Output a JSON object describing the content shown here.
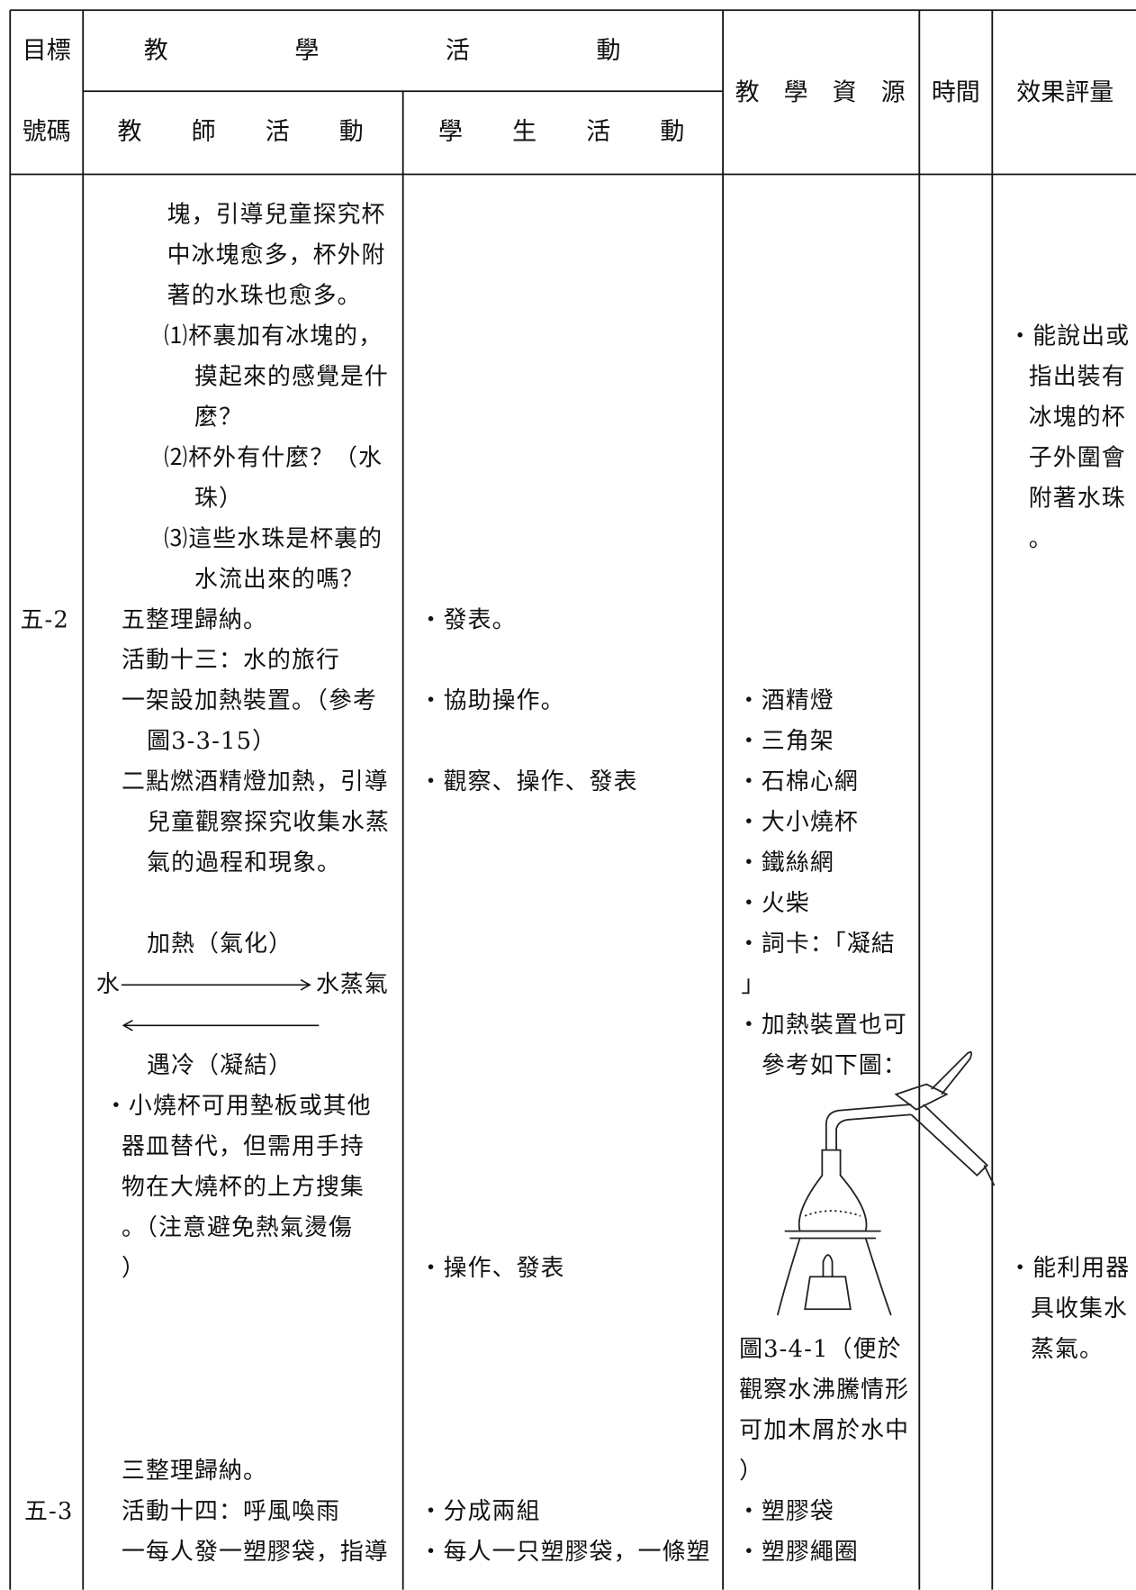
{
  "header": {
    "goal_top": "目標",
    "goal_bottom": "號碼",
    "activities": "教學活動",
    "teacher_activities": "教師活動",
    "student_activities": "學生活動",
    "resources": "教學資源",
    "time": "時間",
    "evaluation": "效果評量"
  },
  "goal_codes": [
    "五-2",
    "五-3"
  ],
  "teacher_lines": [
    "塊，引導兒童探究杯",
    "中冰塊愈多，杯外附",
    "著的水珠也愈多。",
    "⑴杯裏加有冰塊的，",
    "摸起來的感覺是什",
    "麼？",
    "⑵杯外有什麼？（水",
    "珠）",
    "⑶這些水珠是杯裏的",
    "水流出來的嗎？",
    "五整理歸納。",
    "活動十三：水的旅行",
    "一架設加熱裝置。（參考",
    "圖3-3-15）",
    "二點燃酒精燈加熱，引導",
    "兒童觀察探究收集水蒸",
    "氣的過程和現象。",
    "・小燒杯可用墊板或其他",
    "器皿替代，但需用手持",
    "物在大燒杯的上方搜集",
    "。（注意避免熱氣燙傷",
    "）",
    "三整理歸納。",
    "活動十四：呼風喚雨",
    "一每人發一塑膠袋，指導"
  ],
  "diagram": {
    "heat": "加熱（氣化）",
    "water": "水",
    "steam": "水蒸氣",
    "cool": "遇冷（凝結）"
  },
  "student_lines": [
    "・發表。",
    "・協助操作。",
    "・觀察、操作、發表",
    "・操作、發表",
    "・分成兩組",
    "・每人一只塑膠袋，一條塑"
  ],
  "resource_lines": [
    "・酒精燈",
    "・三角架",
    "・石棉心網",
    "・大小燒杯",
    "・鐵絲網",
    "・火柴",
    "・詞卡：「凝結",
    "」",
    "・加熱裝置也可",
    "參考如下圖：",
    "圖3-4-1（便於",
    "觀察水沸騰情形",
    "可加木屑於水中",
    "）",
    "・塑膠袋",
    "・塑膠繩圈"
  ],
  "evaluation_lines": [
    "・能說出或",
    "指出裝有",
    "冰塊的杯",
    "子外圍會",
    "附著水珠",
    "。",
    "・能利用器",
    "具收集水",
    "蒸氣。"
  ]
}
